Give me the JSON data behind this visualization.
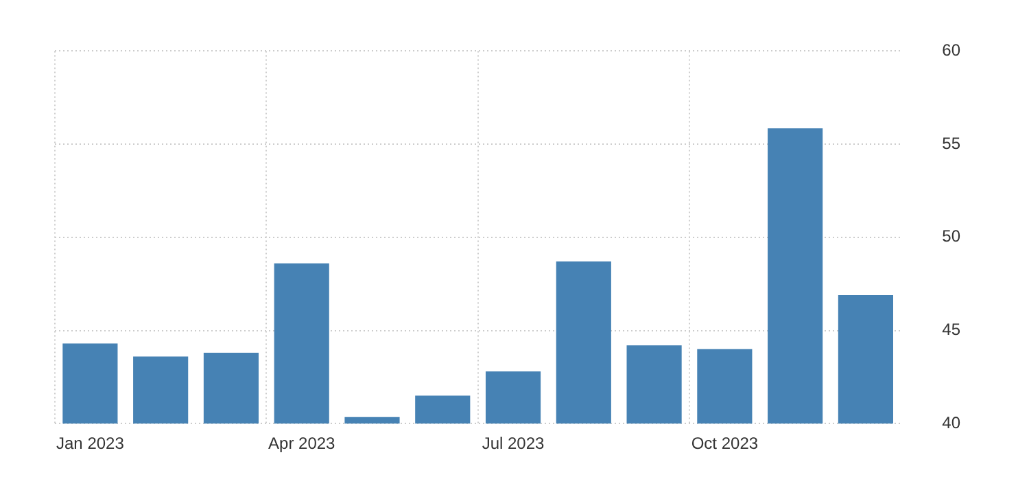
{
  "chart_data": {
    "type": "bar",
    "categories": [
      "Jan 2023",
      null,
      null,
      "Apr 2023",
      null,
      null,
      "Jul 2023",
      null,
      null,
      "Oct 2023",
      null,
      null
    ],
    "values": [
      44.3,
      43.6,
      43.8,
      48.6,
      40.35,
      41.5,
      42.8,
      48.7,
      44.2,
      44.0,
      55.85,
      46.9
    ],
    "color": "#4682b4",
    "ylim": [
      40,
      60
    ],
    "yticks": [
      40,
      45,
      50,
      55,
      60
    ],
    "grid": true
  }
}
